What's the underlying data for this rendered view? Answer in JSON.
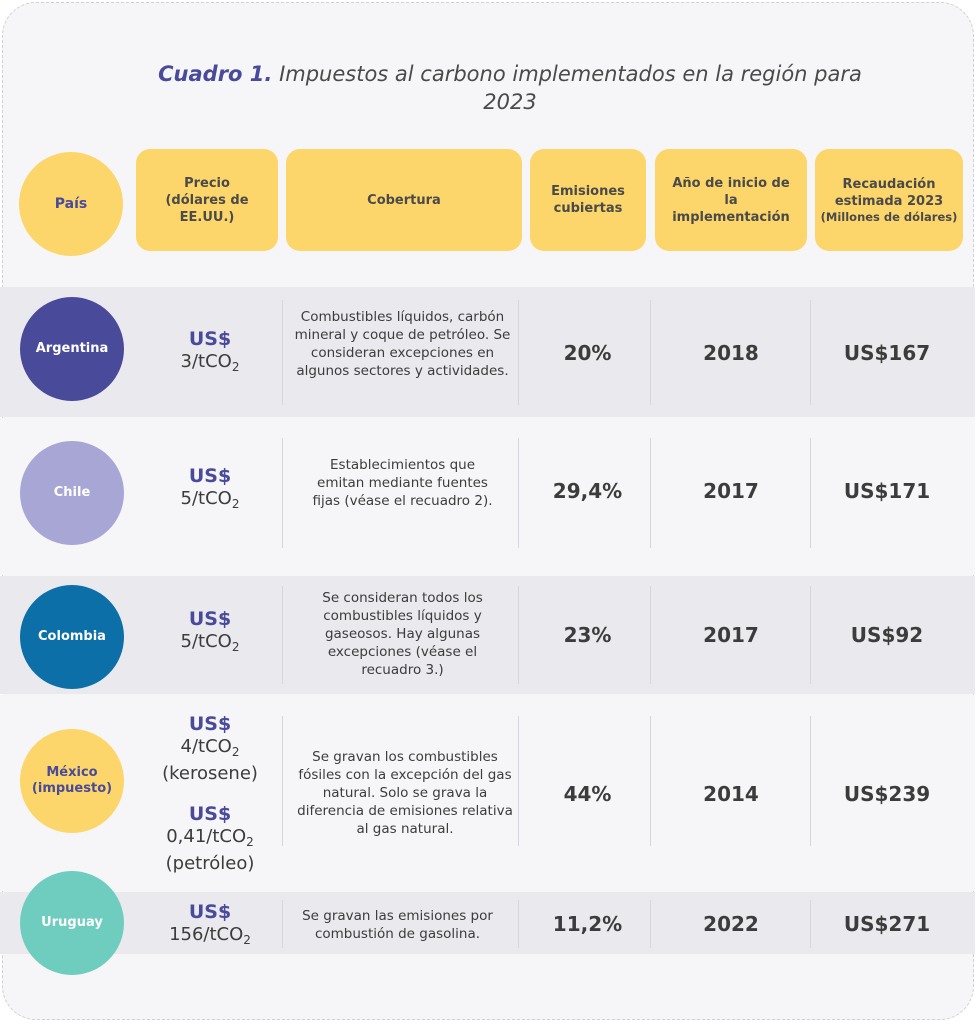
{
  "title": {
    "label": "Cuadro 1.",
    "text": "Impuestos al carbono implementados en la región para 2023"
  },
  "headers": {
    "country": "País",
    "price": "Precio (dólares de EE.UU.)",
    "coverage": "Cobertura",
    "emissions": "Emisiones cubiertas",
    "year": "Año de inicio de la implementación",
    "revenue": "Recaudación estimada 2023",
    "revenue_sub": "(Millones de dólares)"
  },
  "colors": {
    "header_yellow": "#fcd66a",
    "argentina": "#4a4a9a",
    "chile": "#a8a6d4",
    "colombia": "#0c6fa8",
    "mexico": "#fcd66a",
    "uruguay": "#6ecdbf"
  },
  "rows": [
    {
      "country": "Argentina",
      "country_sub": "",
      "price_currency": "US$",
      "price_amount": "3/tCO",
      "price_note": "",
      "coverage": "Combustibles líquidos, carbón mineral y coque de petróleo. Se consideran excepciones en algunos sectores y actividades.",
      "emissions": "20%",
      "year": "2018",
      "revenue": "US$167"
    },
    {
      "country": "Chile",
      "country_sub": "",
      "price_currency": "US$",
      "price_amount": "5/tCO",
      "price_note": "",
      "coverage": "Establecimientos que emitan mediante fuentes fijas (véase el recuadro 2).",
      "emissions": "29,4%",
      "year": "2017",
      "revenue": "US$171"
    },
    {
      "country": "Colombia",
      "country_sub": "",
      "price_currency": "US$",
      "price_amount": "5/tCO",
      "price_note": "",
      "coverage": "Se consideran todos los combustibles líquidos y gaseosos. Hay algunas excepciones (véase el recuadro 3.)",
      "emissions": "23%",
      "year": "2017",
      "revenue": "US$92"
    },
    {
      "country": "México",
      "country_sub": "(impuesto)",
      "price_currency": "US$",
      "price_amount": "4/tCO",
      "price_note": "(kerosene)",
      "price_currency_2": "US$",
      "price_amount_2": "0,41/tCO",
      "price_note_2": "(petróleo)",
      "coverage": "Se gravan los combustibles fósiles con la excepción del gas natural. Solo se grava la diferencia de emisiones relativa al gas natural.",
      "emissions": "44%",
      "year": "2014",
      "revenue": "US$239"
    },
    {
      "country": "Uruguay",
      "country_sub": "",
      "price_currency": "US$",
      "price_amount": "156/tCO",
      "price_note": "",
      "coverage": "Se gravan las emisiones por combustión de gasolina.",
      "emissions": "11,2%",
      "year": "2022",
      "revenue": "US$271"
    }
  ],
  "subscript": "2"
}
